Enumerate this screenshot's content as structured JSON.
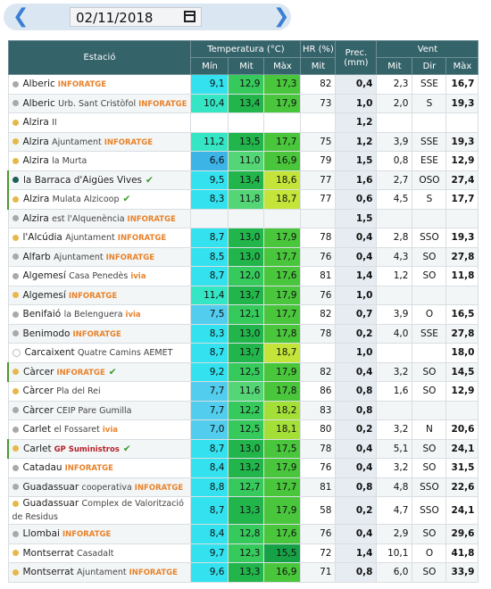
{
  "date": "02/11/2018",
  "header": {
    "station": "Estació",
    "temperature": "Temperatura (°C)",
    "humidity": "HR (%)",
    "precipitation": "Prec. (mm)",
    "wind": "Vent",
    "min": "Mín",
    "mit": "Mit",
    "max": "Màx",
    "hr_mit": "Mit",
    "wind_mit": "Mit",
    "wind_dir": "Dir",
    "wind_max": "Màx"
  },
  "marker_colors": {
    "gray": "#a9a9a9",
    "yellow": "#e6b84a",
    "teal": "#1f5f5a"
  },
  "rows": [
    {
      "station": {
        "name": "Alberic",
        "tag": "INFORATGE"
      },
      "marker": "gray",
      "min": "9,1",
      "mit": "12,9",
      "max": "17,3",
      "hr": "82",
      "prec": "0,4",
      "wind_mit": "2,3",
      "wind_dir": "SSE",
      "wind_max": "16,7"
    },
    {
      "station": {
        "name": "Alberic",
        "detail": "Urb. Sant Cristòfol",
        "tag": "INFORATGE"
      },
      "marker": "gray",
      "min": "10,4",
      "mit": "13,4",
      "max": "17,9",
      "hr": "73",
      "prec": "1,0",
      "wind_mit": "2,0",
      "wind_dir": "S",
      "wind_max": "19,3"
    },
    {
      "station": {
        "name": "Alzira",
        "detail": "II"
      },
      "marker": "yellow",
      "prec": "1,2"
    },
    {
      "station": {
        "name": "Alzira",
        "detail": "Ajuntament",
        "tag": "INFORATGE"
      },
      "marker": "yellow",
      "min": "11,2",
      "mit": "13,5",
      "max": "17,7",
      "hr": "75",
      "prec": "1,2",
      "wind_mit": "3,9",
      "wind_dir": "SSE",
      "wind_max": "19,3"
    },
    {
      "station": {
        "name": "Alzira",
        "detail": "la Murta"
      },
      "marker": "yellow",
      "min": "6,6",
      "mit": "11,0",
      "max": "16,9",
      "hr": "79",
      "prec": "1,5",
      "wind_mit": "0,8",
      "wind_dir": "ESE",
      "wind_max": "12,9"
    },
    {
      "station": {
        "name": "la Barraca d'Aigües Vives"
      },
      "marker": "teal",
      "verified": true,
      "min": "9,5",
      "mit": "13,4",
      "max": "18,6",
      "hr": "77",
      "prec": "1,6",
      "wind_mit": "2,7",
      "wind_dir": "OSO",
      "wind_max": "27,4"
    },
    {
      "station": {
        "name": "Alzira",
        "detail": "Mulata Alzicoop"
      },
      "marker": "yellow",
      "verified": true,
      "min": "8,3",
      "mit": "11,8",
      "max": "18,7",
      "hr": "77",
      "prec": "0,6",
      "wind_mit": "4,5",
      "wind_dir": "S",
      "wind_max": "17,7"
    },
    {
      "station": {
        "name": "Alzira",
        "detail": "est l'Alquenència",
        "tag": "INFORATGE"
      },
      "marker": "gray",
      "prec": "1,5"
    },
    {
      "station": {
        "name": "l'Alcúdia",
        "detail": "Ajuntament",
        "tag": "INFORATGE"
      },
      "marker": "yellow",
      "min": "8,7",
      "mit": "13,0",
      "max": "17,9",
      "hr": "78",
      "prec": "0,4",
      "wind_mit": "2,8",
      "wind_dir": "SSO",
      "wind_max": "19,3"
    },
    {
      "station": {
        "name": "Alfarb",
        "detail": "Ajuntament",
        "tag": "INFORATGE"
      },
      "marker": "gray",
      "min": "8,5",
      "mit": "13,0",
      "max": "17,7",
      "hr": "76",
      "prec": "0,4",
      "wind_mit": "4,3",
      "wind_dir": "SO",
      "wind_max": "27,8"
    },
    {
      "station": {
        "name": "Algemesí",
        "detail": "Casa Penedès",
        "tag": "ivia"
      },
      "marker": "gray",
      "min": "8,7",
      "mit": "12,0",
      "max": "17,6",
      "hr": "81",
      "prec": "1,4",
      "wind_mit": "1,2",
      "wind_dir": "SO",
      "wind_max": "11,8"
    },
    {
      "station": {
        "name": "Algemesí",
        "tag": "INFORATGE"
      },
      "marker": "yellow",
      "min": "11,4",
      "mit": "13,7",
      "max": "17,9",
      "hr": "76",
      "prec": "1,0"
    },
    {
      "station": {
        "name": "Benifaió",
        "detail": "la Belenguera",
        "tag": "ivia"
      },
      "marker": "gray",
      "min": "7,5",
      "mit": "12,1",
      "max": "17,7",
      "hr": "82",
      "prec": "0,7",
      "wind_mit": "3,9",
      "wind_dir": "O",
      "wind_max": "16,5"
    },
    {
      "station": {
        "name": "Benimodo",
        "tag": "INFORATGE"
      },
      "marker": "gray",
      "min": "8,3",
      "mit": "13,0",
      "max": "17,8",
      "hr": "78",
      "prec": "0,2",
      "wind_mit": "4,0",
      "wind_dir": "SSE",
      "wind_max": "27,8"
    },
    {
      "station": {
        "name": "Carcaixent",
        "detail": "Quatre Camins AEMET"
      },
      "marker": "none",
      "min": "8,7",
      "mit": "13,7",
      "max": "18,7",
      "prec": "1,0",
      "wind_max": "18,0"
    },
    {
      "station": {
        "name": "Càrcer",
        "tag": "INFORATGE"
      },
      "marker": "yellow",
      "verified": true,
      "min": "9,2",
      "mit": "12,5",
      "max": "17,9",
      "hr": "82",
      "prec": "0,4",
      "wind_mit": "3,2",
      "wind_dir": "SO",
      "wind_max": "14,5"
    },
    {
      "station": {
        "name": "Càrcer",
        "detail": "Pla del Rei"
      },
      "marker": "yellow",
      "min": "7,7",
      "mit": "11,6",
      "max": "17,8",
      "hr": "86",
      "prec": "0,8",
      "wind_mit": "1,6",
      "wind_dir": "SO",
      "wind_max": "12,9"
    },
    {
      "station": {
        "name": "Càrcer",
        "detail": "CEIP Pare Gumilla"
      },
      "marker": "gray",
      "min": "7,7",
      "mit": "12,2",
      "max": "18,2",
      "hr": "83",
      "prec": "0,8"
    },
    {
      "station": {
        "name": "Carlet",
        "detail": "el Fossaret",
        "tag": "ivia"
      },
      "marker": "gray",
      "min": "7,0",
      "mit": "12,5",
      "max": "18,1",
      "hr": "80",
      "prec": "0,2",
      "wind_mit": "3,2",
      "wind_dir": "N",
      "wind_max": "20,6"
    },
    {
      "station": {
        "name": "Carlet",
        "tag": "GP Suministros"
      },
      "marker": "yellow",
      "verified": true,
      "min": "8,7",
      "mit": "13,0",
      "max": "17,5",
      "hr": "78",
      "prec": "0,4",
      "wind_mit": "5,1",
      "wind_dir": "SO",
      "wind_max": "24,1"
    },
    {
      "station": {
        "name": "Catadau",
        "tag": "INFORATGE"
      },
      "marker": "gray",
      "min": "8,4",
      "mit": "13,2",
      "max": "17,9",
      "hr": "76",
      "prec": "0,4",
      "wind_mit": "3,2",
      "wind_dir": "SO",
      "wind_max": "31,5"
    },
    {
      "station": {
        "name": "Guadassuar",
        "detail": "cooperativa",
        "tag": "INFORATGE"
      },
      "marker": "gray",
      "min": "8,8",
      "mit": "12,7",
      "max": "17,7",
      "hr": "81",
      "prec": "0,8",
      "wind_mit": "4,8",
      "wind_dir": "SSO",
      "wind_max": "22,6"
    },
    {
      "station": {
        "name": "Guadassuar",
        "detail": "Complex de Valorització de Residus"
      },
      "marker": "yellow",
      "min": "8,7",
      "mit": "13,3",
      "max": "17,9",
      "hr": "58",
      "prec": "0,2",
      "wind_mit": "4,7",
      "wind_dir": "SSO",
      "wind_max": "24,1"
    },
    {
      "station": {
        "name": "Llombai",
        "tag": "INFORATGE"
      },
      "marker": "gray",
      "min": "8,4",
      "mit": "12,8",
      "max": "17,6",
      "hr": "76",
      "prec": "0,4",
      "wind_mit": "2,9",
      "wind_dir": "SO",
      "wind_max": "29,6"
    },
    {
      "station": {
        "name": "Montserrat",
        "detail": "Casadalt"
      },
      "marker": "yellow",
      "min": "9,7",
      "mit": "12,3",
      "max": "15,5",
      "hr": "72",
      "prec": "1,4",
      "wind_mit": "10,1",
      "wind_dir": "O",
      "wind_max": "41,8"
    },
    {
      "station": {
        "name": "Montserrat",
        "detail": "Ajuntament",
        "tag": "INFORATGE"
      },
      "marker": "yellow",
      "min": "9,6",
      "mit": "13,3",
      "max": "16,9",
      "hr": "71",
      "prec": "0,8",
      "wind_mit": "6,0",
      "wind_dir": "SO",
      "wind_max": "33,9"
    }
  ]
}
